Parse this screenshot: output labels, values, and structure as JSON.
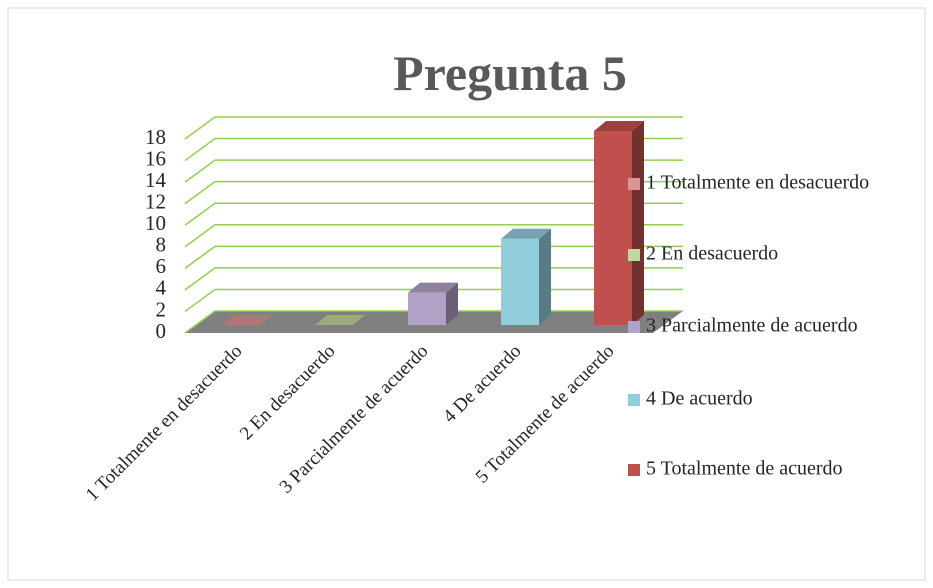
{
  "chart_data": {
    "type": "bar3d",
    "title": "Pregunta 5",
    "categories": [
      "1 Totalmente en desacuerdo",
      "2 En desacuerdo",
      "3 Parcialmente de acuerdo",
      "4 De acuerdo",
      "5 Totalmente de acuerdo"
    ],
    "values": [
      0,
      0,
      3,
      8,
      18
    ],
    "colors": [
      "#d99694",
      "#c3d69b",
      "#b3a2c7",
      "#92cddc",
      "#c0504d"
    ],
    "ylim": [
      0,
      18
    ],
    "yticks": [
      0,
      2,
      4,
      6,
      8,
      10,
      12,
      14,
      16,
      18
    ],
    "grid": true,
    "legend": "right"
  }
}
